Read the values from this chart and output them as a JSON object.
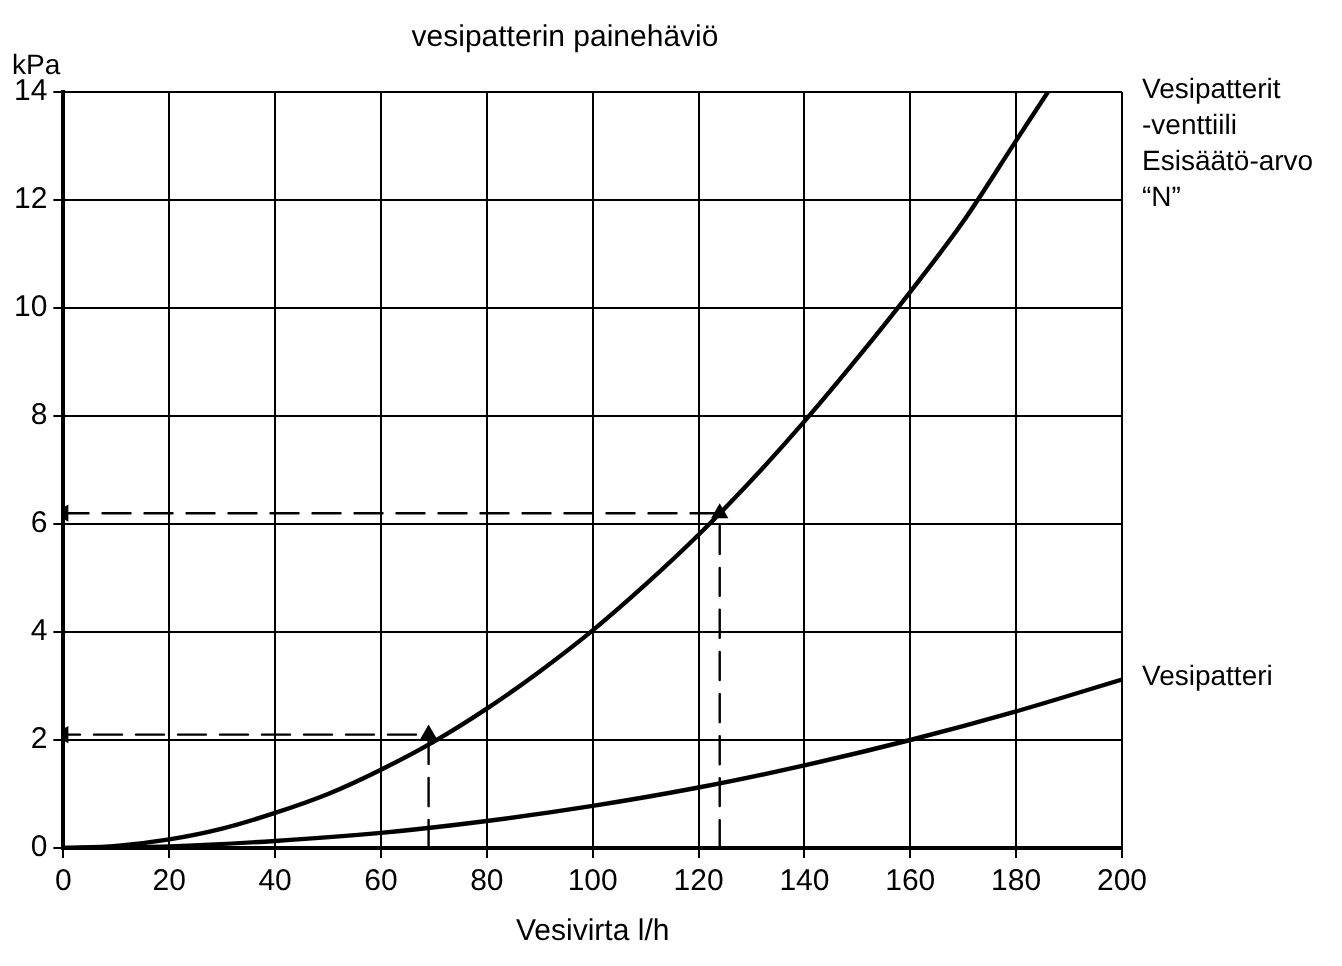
{
  "chart_data": {
    "type": "line",
    "title": "vesipatterin painehäviö",
    "xlabel": "Vesivirta l/h",
    "ylabel": "kPa",
    "xlim": [
      0,
      200
    ],
    "xticks": [
      0,
      20,
      40,
      60,
      80,
      100,
      120,
      140,
      160,
      180,
      200
    ],
    "ylim": [
      0,
      14
    ],
    "yticks": [
      0,
      2,
      4,
      6,
      8,
      10,
      12,
      14
    ],
    "grid": true,
    "legend": false,
    "marker": "none",
    "series": [
      {
        "name": "Vesipatterit -venttiili Esisäätö-arvo “N”",
        "color": "#000000",
        "x": [
          0,
          10,
          20,
          30,
          40,
          50,
          60,
          70,
          80,
          90,
          100,
          110,
          120,
          130,
          140,
          150,
          160,
          170,
          180,
          186
        ],
        "values": [
          0,
          0.04,
          0.16,
          0.36,
          0.65,
          1.0,
          1.45,
          1.97,
          2.58,
          3.27,
          4.03,
          4.88,
          5.8,
          6.81,
          7.9,
          9.07,
          10.3,
          11.6,
          13.1,
          14.0
        ]
      },
      {
        "name": "Vesipatteri",
        "color": "#000000",
        "x": [
          0,
          20,
          40,
          60,
          80,
          100,
          120,
          140,
          160,
          180,
          200
        ],
        "values": [
          0,
          0.03,
          0.13,
          0.28,
          0.5,
          0.78,
          1.12,
          1.53,
          2.0,
          2.53,
          3.12
        ]
      },
      {
        "color": "#000000",
        "line_style": "dashed",
        "marker": "triangle",
        "x": [
          69,
          69,
          0
        ],
        "values": [
          0,
          2.1,
          2.1
        ]
      },
      {
        "color": "#000000",
        "line_style": "dashed",
        "marker": "triangle",
        "x": [
          124,
          124,
          0
        ],
        "values": [
          0,
          6.2,
          6.2
        ]
      }
    ]
  }
}
